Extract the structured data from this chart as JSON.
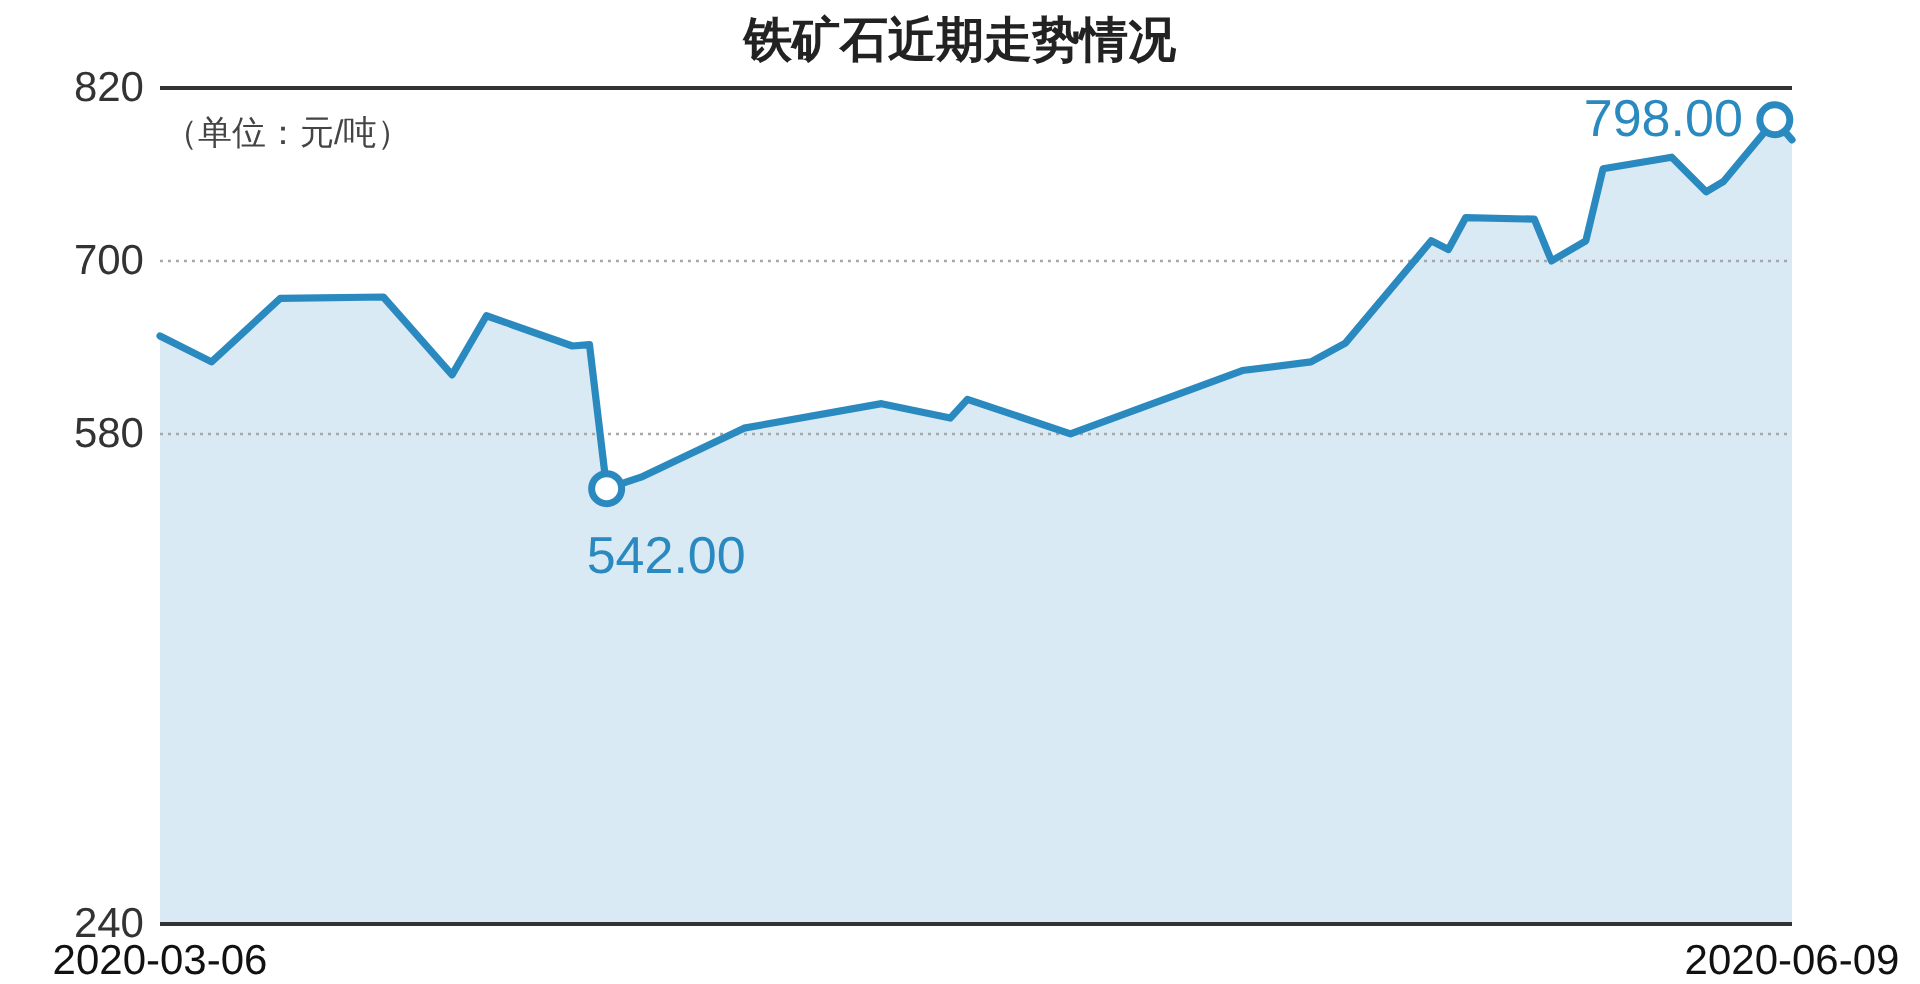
{
  "chart_data": {
    "type": "area",
    "title": "铁矿石近期走势情况",
    "annotations": [
      "（单位：元/吨）"
    ],
    "x": [
      "2020-03-06",
      "2020-03-09",
      "2020-03-13",
      "2020-03-19",
      "2020-03-23",
      "2020-03-25",
      "2020-03-30",
      "2020-03-31",
      "2020-04-01",
      "2020-04-03",
      "2020-04-09",
      "2020-04-17",
      "2020-04-21",
      "2020-04-22",
      "2020-04-28",
      "2020-05-08",
      "2020-05-12",
      "2020-05-14",
      "2020-05-19",
      "2020-05-20",
      "2020-05-21",
      "2020-05-25",
      "2020-05-26",
      "2020-05-28",
      "2020-05-29",
      "2020-06-02",
      "2020-06-04",
      "2020-06-05",
      "2020-06-08",
      "2020-06-09"
    ],
    "xlim": [
      "2020-03-06",
      "2020-06-09"
    ],
    "xticks": [
      "2020-03-06",
      "2020-06-09"
    ],
    "ylim": [
      240,
      820
    ],
    "yticks": [
      240,
      580,
      700,
      820
    ],
    "grid": "y",
    "series": [
      {
        "color": "#2a8ac0",
        "values": [
          648,
          630,
          674,
          675,
          621,
          662,
          641,
          642,
          542,
          550,
          584,
          601,
          591,
          604,
          580,
          624,
          630,
          643,
          714,
          708,
          730,
          729,
          700,
          714,
          764,
          772,
          748,
          755,
          798,
          784
        ]
      },
      {
        "type": "scatter",
        "color": "#2a8ac0",
        "marker": "circle",
        "x": [
          "2020-04-01",
          "2020-06-08"
        ],
        "values": [
          542,
          798
        ],
        "value_labels": [
          "542.00",
          "798.00"
        ]
      }
    ]
  }
}
